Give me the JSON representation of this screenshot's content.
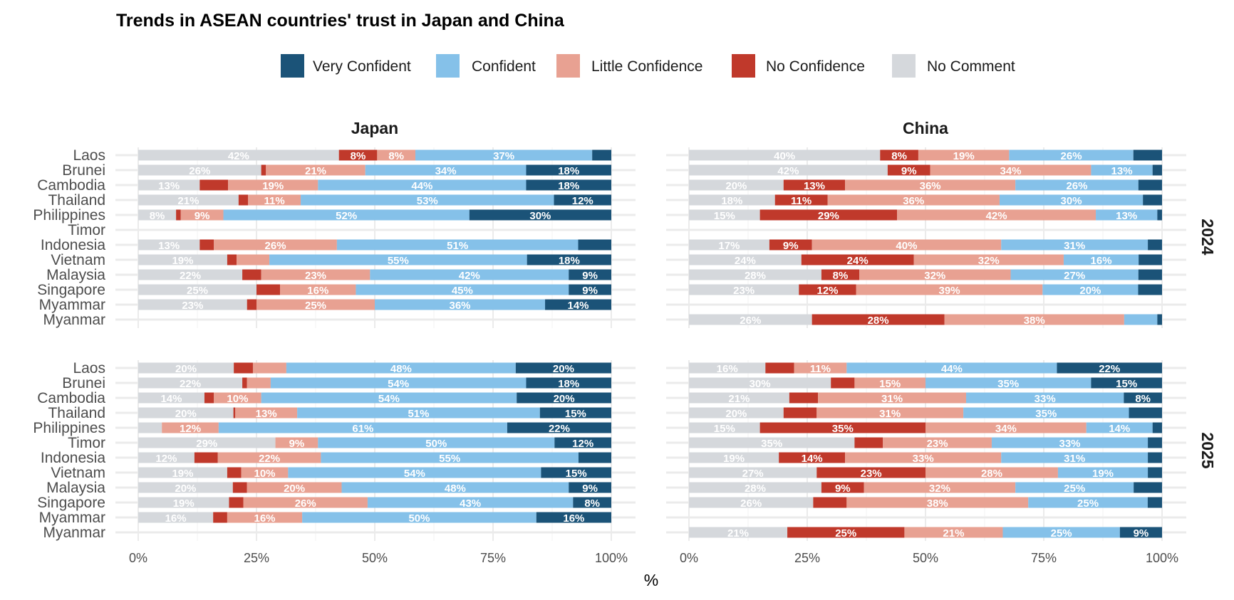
{
  "chart_data": {
    "type": "bar",
    "orientation": "horizontal",
    "stacked": true,
    "title": "Trends in ASEAN countries' trust in Japan and China",
    "xlabel": "%",
    "ylabel": "",
    "xlim": [
      0,
      100
    ],
    "x_ticks": [
      "0%",
      "25%",
      "50%",
      "75%",
      "100%"
    ],
    "grid": true,
    "legend_position": "top",
    "series": [
      {
        "name": "Very Confident",
        "color": "#1b5378"
      },
      {
        "name": "Confident",
        "color": "#85c1e9"
      },
      {
        "name": "Little Confidence",
        "color": "#e8a192"
      },
      {
        "name": "No Confidence",
        "color": "#c0392b"
      },
      {
        "name": "No Comment",
        "color": "#d5d8dc"
      }
    ],
    "stack_order_left_to_right": [
      "No Comment",
      "No Confidence",
      "Little Confidence",
      "Confident",
      "Very Confident"
    ],
    "categories": [
      "Laos",
      "Brunei",
      "Cambodia",
      "Thailand",
      "Philippines",
      "Timor",
      "Indonesia",
      "Vietnam",
      "Malaysia",
      "Singapore",
      "Myammar",
      "Myanmar"
    ],
    "column_facets": [
      "Japan",
      "China"
    ],
    "row_facets": [
      "2024",
      "2025"
    ],
    "panels": [
      {
        "column": "Japan",
        "row": "2024",
        "values": {
          "Laos": [
            42,
            8,
            8,
            37,
            4
          ],
          "Brunei": [
            26,
            1,
            21,
            34,
            18
          ],
          "Cambodia": [
            13,
            6,
            19,
            44,
            18
          ],
          "Thailand": [
            21,
            2,
            11,
            53,
            12
          ],
          "Philippines": [
            8,
            1,
            9,
            52,
            30
          ],
          "Timor": null,
          "Indonesia": [
            13,
            3,
            26,
            51,
            7
          ],
          "Vietnam": [
            19,
            2,
            7,
            55,
            18
          ],
          "Malaysia": [
            22,
            4,
            23,
            42,
            9
          ],
          "Singapore": [
            25,
            5,
            16,
            45,
            9
          ],
          "Myammar": [
            23,
            2,
            25,
            36,
            14
          ],
          "Myanmar": null
        }
      },
      {
        "column": "China",
        "row": "2024",
        "values": {
          "Laos": [
            40,
            8,
            19,
            26,
            6
          ],
          "Brunei": [
            42,
            9,
            34,
            13,
            2
          ],
          "Cambodia": [
            20,
            13,
            36,
            26,
            5
          ],
          "Thailand": [
            18,
            11,
            36,
            30,
            4
          ],
          "Philippines": [
            15,
            29,
            42,
            13,
            1
          ],
          "Timor": null,
          "Indonesia": [
            17,
            9,
            40,
            31,
            3
          ],
          "Vietnam": [
            24,
            24,
            32,
            16,
            5
          ],
          "Malaysia": [
            28,
            8,
            32,
            27,
            5
          ],
          "Singapore": [
            23,
            12,
            39,
            20,
            5
          ],
          "Myammar": null,
          "Myanmar": [
            26,
            28,
            38,
            7,
            1
          ]
        }
      },
      {
        "column": "Japan",
        "row": "2025",
        "values": {
          "Laos": [
            20,
            4,
            7,
            48,
            20
          ],
          "Brunei": [
            22,
            1,
            5,
            54,
            18
          ],
          "Cambodia": [
            14,
            2,
            10,
            54,
            20
          ],
          "Thailand": [
            20,
            0.4,
            13,
            51,
            15
          ],
          "Philippines": [
            5,
            0,
            12,
            61,
            22
          ],
          "Timor": [
            29,
            0,
            9,
            50,
            12
          ],
          "Indonesia": [
            12,
            5,
            22,
            55,
            7
          ],
          "Vietnam": [
            19,
            3,
            10,
            54,
            15
          ],
          "Malaysia": [
            20,
            3,
            20,
            48,
            9
          ],
          "Singapore": [
            19,
            3,
            26,
            43,
            8
          ],
          "Myammar": [
            16,
            3,
            16,
            50,
            16
          ],
          "Myanmar": null
        }
      },
      {
        "column": "China",
        "row": "2025",
        "values": {
          "Laos": [
            16,
            6,
            11,
            44,
            22
          ],
          "Brunei": [
            30,
            5,
            15,
            35,
            15
          ],
          "Cambodia": [
            21,
            6,
            31,
            33,
            8
          ],
          "Thailand": [
            20,
            7,
            31,
            35,
            7
          ],
          "Philippines": [
            15,
            35,
            34,
            14,
            2
          ],
          "Timor": [
            35,
            6,
            23,
            33,
            3
          ],
          "Indonesia": [
            19,
            14,
            33,
            31,
            3
          ],
          "Vietnam": [
            27,
            23,
            28,
            19,
            3
          ],
          "Malaysia": [
            28,
            9,
            32,
            25,
            6
          ],
          "Singapore": [
            26,
            7,
            38,
            25,
            3
          ],
          "Myammar": null,
          "Myanmar": [
            21,
            25,
            21,
            25,
            9
          ]
        }
      }
    ]
  }
}
